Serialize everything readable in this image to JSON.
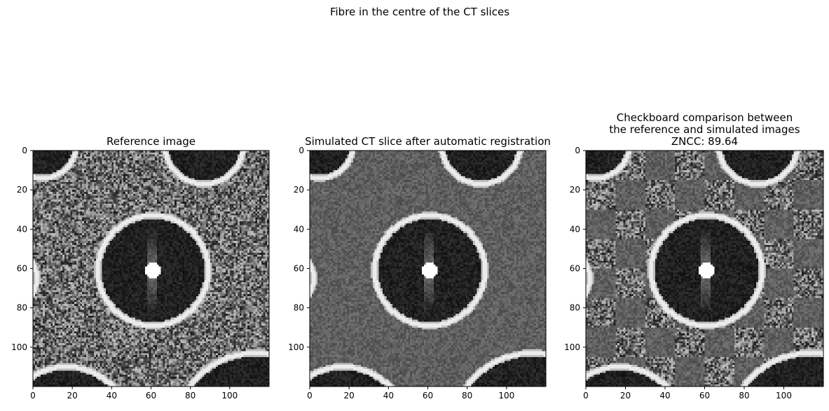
{
  "figure": {
    "suptitle": "Fibre in the centre of the CT slices"
  },
  "chart_data": [
    {
      "type": "heatmap",
      "title_lines": [
        "Reference image"
      ],
      "colormap": "gray",
      "xlim": [
        0,
        120
      ],
      "ylim": [
        120,
        0
      ],
      "xticks": [
        0,
        20,
        40,
        60,
        80,
        100
      ],
      "yticks": [
        0,
        20,
        40,
        60,
        80,
        100
      ],
      "style": "reference"
    },
    {
      "type": "heatmap",
      "title_lines": [
        "Simulated CT slice after automatic registration"
      ],
      "colormap": "gray",
      "xlim": [
        0,
        120
      ],
      "ylim": [
        120,
        0
      ],
      "xticks": [
        0,
        20,
        40,
        60,
        80,
        100
      ],
      "yticks": [
        0,
        20,
        40,
        60,
        80,
        100
      ],
      "style": "simulated"
    },
    {
      "type": "heatmap",
      "title_lines": [
        "Checkboard comparison between",
        "the reference and simulated images",
        "ZNCC: 89.64"
      ],
      "colormap": "gray",
      "xlim": [
        0,
        120
      ],
      "ylim": [
        120,
        0
      ],
      "xticks": [
        0,
        20,
        40,
        60,
        80,
        100
      ],
      "yticks": [
        0,
        20,
        40,
        60,
        80,
        100
      ],
      "style": "checkerboard",
      "zncc": 89.64
    }
  ]
}
